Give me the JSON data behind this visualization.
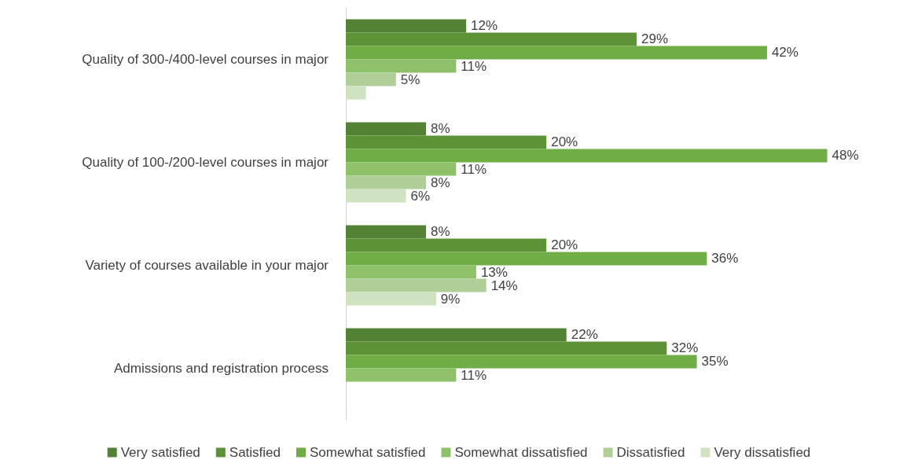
{
  "chart_data": {
    "type": "bar",
    "orientation": "horizontal",
    "categories": [
      "Quality of 300-/400-level courses in major",
      "Quality of 100-/200-level courses in major",
      "Variety of courses available in your major",
      "Admissions and registration process"
    ],
    "series": [
      {
        "name": "Very satisfied",
        "color": "#548235",
        "values": [
          12,
          8,
          8,
          22
        ],
        "value_labels": [
          "12%",
          "8%",
          "8%",
          "22%"
        ]
      },
      {
        "name": "Satisfied",
        "color": "#5e9236",
        "values": [
          29,
          20,
          20,
          32
        ],
        "value_labels": [
          "29%",
          "20%",
          "20%",
          "32%"
        ]
      },
      {
        "name": "Somewhat satisfied",
        "color": "#70ad47",
        "values": [
          42,
          48,
          36,
          35
        ],
        "value_labels": [
          "42%",
          "48%",
          "36%",
          "35%"
        ]
      },
      {
        "name": "Somewhat dissatisfied",
        "color": "#8fc16b",
        "values": [
          11,
          11,
          13,
          11
        ],
        "value_labels": [
          "11%",
          "11%",
          "13%",
          "11%"
        ]
      },
      {
        "name": "Dissatisfied",
        "color": "#b0cf98",
        "values": [
          5,
          8,
          14,
          null
        ],
        "value_labels": [
          "5%",
          "8%",
          "14%",
          null
        ]
      },
      {
        "name": "Very dissatisfied",
        "color": "#cfe2c2",
        "values": [
          2,
          6,
          9,
          null
        ],
        "value_labels": [
          null,
          "6%",
          "9%",
          null
        ]
      }
    ],
    "legend": "bottom"
  }
}
